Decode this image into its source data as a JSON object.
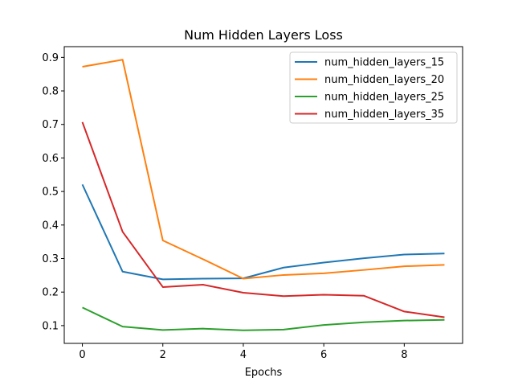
{
  "chart_data": {
    "type": "line",
    "title": "Num Hidden Layers Loss",
    "xlabel": "Epochs",
    "ylabel": "",
    "xlim": [
      -0.45,
      9.45
    ],
    "ylim": [
      0.047,
      0.932
    ],
    "xticks": [
      0,
      2,
      4,
      6,
      8
    ],
    "yticks": [
      0.1,
      0.2,
      0.3,
      0.4,
      0.5,
      0.6,
      0.7,
      0.8,
      0.9
    ],
    "grid": false,
    "legend_position": "top-right",
    "x": [
      0,
      1,
      2,
      3,
      4,
      5,
      6,
      7,
      8,
      9
    ],
    "series": [
      {
        "name": "num_hidden_layers_15",
        "color": "#1f77b4",
        "values": [
          0.521,
          0.261,
          0.238,
          0.24,
          0.241,
          0.273,
          0.288,
          0.301,
          0.312,
          0.315
        ]
      },
      {
        "name": "num_hidden_layers_20",
        "color": "#ff7f0e",
        "values": [
          0.872,
          0.893,
          0.354,
          0.298,
          0.24,
          0.251,
          0.256,
          0.266,
          0.277,
          0.281
        ]
      },
      {
        "name": "num_hidden_layers_25",
        "color": "#2ca02c",
        "values": [
          0.154,
          0.097,
          0.087,
          0.091,
          0.086,
          0.088,
          0.102,
          0.11,
          0.115,
          0.117
        ]
      },
      {
        "name": "num_hidden_layers_35",
        "color": "#d62728",
        "values": [
          0.707,
          0.38,
          0.215,
          0.222,
          0.198,
          0.188,
          0.192,
          0.189,
          0.142,
          0.125
        ]
      }
    ]
  }
}
